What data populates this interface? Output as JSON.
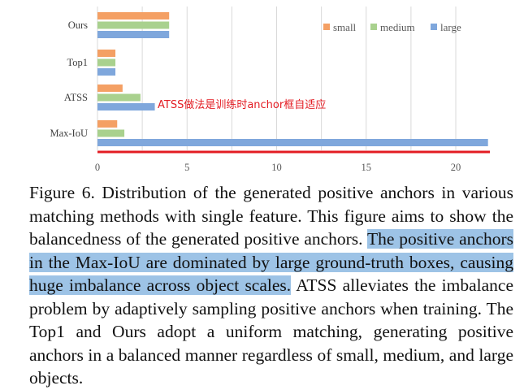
{
  "chart_data": {
    "type": "bar",
    "orientation": "horizontal",
    "categories": [
      "Ours",
      "Top1",
      "ATSS",
      "Max-IoU"
    ],
    "series": [
      {
        "name": "small",
        "color": "#f4a064",
        "values": [
          4.0,
          1.0,
          1.4,
          1.1
        ]
      },
      {
        "name": "medium",
        "color": "#a9d18e",
        "values": [
          4.0,
          1.0,
          2.4,
          1.5
        ]
      },
      {
        "name": "large",
        "color": "#7fa7dc",
        "values": [
          4.0,
          1.0,
          3.2,
          21.8
        ]
      }
    ],
    "x_ticks": [
      "0",
      "5",
      "10",
      "15",
      "20"
    ],
    "xlim": [
      0,
      22
    ],
    "grid": "vertical",
    "legend_position": "top-right",
    "annotation": "ATSS做法是训练时anchor框自适应",
    "annotation_color": "#e31c23",
    "underline_color": "#e31c23"
  },
  "caption": {
    "before": "Figure 6. Distribution of the generated positive anchors in various matching methods with single feature.  This figure aims to show the balancedness of the generated positive anchors. ",
    "highlighted": "The positive anchors in the Max-IoU are dominated by large ground-truth boxes, causing huge imbalance across object scales.",
    "after": "  ATSS alleviates the imbalance problem by adaptively sampling positive anchors when training. The Top1 and Ours adopt a uniform matching, generating positive anchors in a balanced manner regardless of small, medium, and large objects.",
    "highlight_color": "#9dc3e6"
  }
}
